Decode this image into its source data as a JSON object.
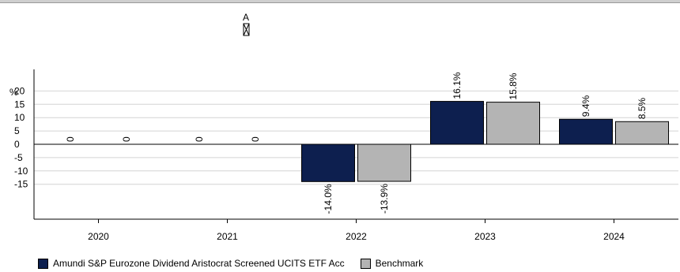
{
  "chart_data": {
    "type": "bar",
    "categories": [
      "2020",
      "2021",
      "2022",
      "2023",
      "2024"
    ],
    "series": [
      {
        "name": "Amundi S&P Eurozone Dividend Aristocrat Screened UCITS ETF Acc",
        "values": [
          0,
          0,
          -14.0,
          16.1,
          9.4
        ],
        "labels": [
          "0",
          "0",
          "-14.0%",
          "16.1%",
          "9.4%"
        ],
        "color": "#0d1f4f"
      },
      {
        "name": "Benchmark",
        "values": [
          0,
          0,
          -13.9,
          15.8,
          8.5
        ],
        "labels": [
          "0",
          "0",
          "-13.9%",
          "15.8%",
          "8.5%"
        ],
        "color": "#b4b4b4"
      }
    ],
    "yunit": "%",
    "yticks": [
      20,
      15,
      10,
      5,
      0,
      -5,
      -10,
      -15
    ],
    "ytick_labels": [
      "20",
      "15",
      "10",
      "5",
      "0",
      "-5",
      "-10",
      "-15"
    ],
    "ylim": [
      -27.5,
      28.5
    ],
    "grid": true,
    "legend": "bottom-left",
    "annotation": "A"
  }
}
